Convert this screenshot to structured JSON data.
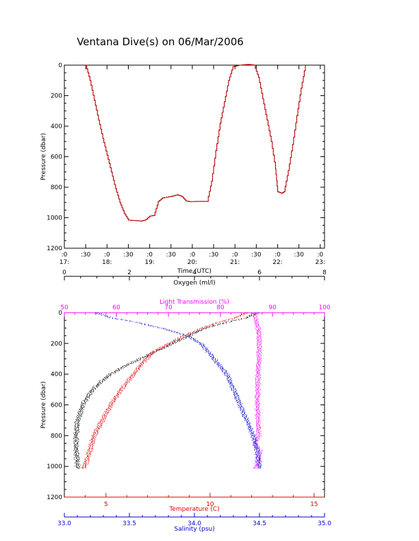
{
  "title": "Ventana Dive(s) on 06/Mar/2006",
  "colors": {
    "axis": "#000000",
    "dive_line": "#cc0000",
    "oxygen": "#000000",
    "light": "#ff00ff",
    "temperature": "#dd0000",
    "salinity": "#0000cc"
  },
  "chart_data": [
    {
      "type": "line",
      "name": "dive-track",
      "xlabel": "Time (UTC)",
      "ylabel": "Pressure (dbar)",
      "xlim": [
        17.0,
        23.1
      ],
      "ylim": [
        1200,
        0
      ],
      "y_ticks": [
        0,
        200,
        400,
        600,
        800,
        1000,
        1200
      ],
      "x_tick_labels": [
        {
          "t": 17.0,
          "top": ":0",
          "bottom": "17:"
        },
        {
          "t": 17.5,
          "top": ":30",
          "bottom": ""
        },
        {
          "t": 18.0,
          "top": ":0",
          "bottom": "18:"
        },
        {
          "t": 18.5,
          "top": ":30",
          "bottom": ""
        },
        {
          "t": 19.0,
          "top": ":0",
          "bottom": "19:"
        },
        {
          "t": 19.5,
          "top": ":30",
          "bottom": ""
        },
        {
          "t": 20.0,
          "top": ":0",
          "bottom": "20:"
        },
        {
          "t": 20.5,
          "top": ":30",
          "bottom": ""
        },
        {
          "t": 21.0,
          "top": ":0",
          "bottom": "21:"
        },
        {
          "t": 21.5,
          "top": ":30",
          "bottom": ""
        },
        {
          "t": 22.0,
          "top": ":0",
          "bottom": "22:"
        },
        {
          "t": 22.5,
          "top": ":30",
          "bottom": ""
        },
        {
          "t": 23.0,
          "top": ":0",
          "bottom": "23:"
        }
      ],
      "points": [
        [
          17.5,
          0
        ],
        [
          17.6,
          100
        ],
        [
          17.7,
          230
        ],
        [
          17.8,
          360
        ],
        [
          17.9,
          480
        ],
        [
          18.0,
          590
        ],
        [
          18.1,
          700
        ],
        [
          18.2,
          810
        ],
        [
          18.3,
          900
        ],
        [
          18.4,
          970
        ],
        [
          18.5,
          1015
        ],
        [
          18.6,
          1018
        ],
        [
          18.8,
          1022
        ],
        [
          18.9,
          1015
        ],
        [
          19.0,
          990
        ],
        [
          19.1,
          985
        ],
        [
          19.2,
          895
        ],
        [
          19.3,
          870
        ],
        [
          19.5,
          860
        ],
        [
          19.65,
          850
        ],
        [
          19.75,
          860
        ],
        [
          19.85,
          890
        ],
        [
          19.95,
          895
        ],
        [
          20.1,
          893
        ],
        [
          20.35,
          893
        ],
        [
          20.45,
          760
        ],
        [
          20.55,
          560
        ],
        [
          20.65,
          380
        ],
        [
          20.75,
          240
        ],
        [
          20.85,
          100
        ],
        [
          20.95,
          10
        ],
        [
          21.1,
          0
        ],
        [
          21.3,
          -5
        ],
        [
          21.45,
          0
        ],
        [
          21.55,
          80
        ],
        [
          21.65,
          220
        ],
        [
          21.75,
          360
        ],
        [
          21.85,
          500
        ],
        [
          21.95,
          680
        ],
        [
          22.0,
          830
        ],
        [
          22.1,
          840
        ],
        [
          22.15,
          830
        ],
        [
          22.25,
          690
        ],
        [
          22.35,
          520
        ],
        [
          22.45,
          330
        ],
        [
          22.55,
          150
        ],
        [
          22.65,
          0
        ]
      ]
    },
    {
      "type": "scatter",
      "name": "profiles",
      "ylabel": "Pressure (dbar)",
      "ylim": [
        1200,
        0
      ],
      "y_ticks": [
        0,
        200,
        400,
        600,
        800,
        1000,
        1200
      ],
      "axes": {
        "oxygen": {
          "label": "Oxygen (ml/l)",
          "lim": [
            0,
            8
          ],
          "ticks": [
            0,
            2,
            4,
            6,
            8
          ]
        },
        "light": {
          "label": "Light Transmission (%)",
          "lim": [
            50,
            100
          ],
          "ticks": [
            50,
            60,
            70,
            80,
            90,
            100
          ]
        },
        "temperature": {
          "label": "Temperature (C)",
          "lim": [
            3,
            15.5
          ],
          "ticks": [
            5,
            10,
            15
          ]
        },
        "salinity": {
          "label": "Salinity (psu)",
          "lim": [
            33.0,
            35.0
          ],
          "ticks": [
            "33.0",
            "33.5",
            "34.0",
            "34.5",
            "35.0"
          ]
        }
      },
      "series": [
        {
          "key": "oxygen",
          "profile": [
            [
              0,
              5.9
            ],
            [
              30,
              5.6
            ],
            [
              60,
              5.0
            ],
            [
              100,
              4.3
            ],
            [
              150,
              3.8
            ],
            [
              200,
              3.3
            ],
            [
              250,
              2.8
            ],
            [
              300,
              2.3
            ],
            [
              350,
              1.8
            ],
            [
              400,
              1.4
            ],
            [
              450,
              1.1
            ],
            [
              500,
              0.85
            ],
            [
              600,
              0.55
            ],
            [
              700,
              0.4
            ],
            [
              800,
              0.35
            ],
            [
              900,
              0.35
            ],
            [
              1000,
              0.4
            ],
            [
              1010,
              0.42
            ]
          ]
        },
        {
          "key": "light",
          "profile": [
            [
              0,
              87.0
            ],
            [
              20,
              86.5
            ],
            [
              50,
              86.8
            ],
            [
              100,
              87.2
            ],
            [
              200,
              87.4
            ],
            [
              400,
              87.2
            ],
            [
              600,
              87.0
            ],
            [
              800,
              87.3
            ],
            [
              850,
              86.5
            ],
            [
              900,
              87.5
            ],
            [
              1000,
              86.8
            ],
            [
              1010,
              86.6
            ]
          ]
        },
        {
          "key": "temperature",
          "profile": [
            [
              0,
              11.7
            ],
            [
              30,
              11.2
            ],
            [
              60,
              10.4
            ],
            [
              100,
              9.6
            ],
            [
              150,
              8.7
            ],
            [
              200,
              8.0
            ],
            [
              250,
              7.3
            ],
            [
              300,
              6.9
            ],
            [
              400,
              6.3
            ],
            [
              500,
              5.7
            ],
            [
              600,
              5.2
            ],
            [
              700,
              4.8
            ],
            [
              800,
              4.4
            ],
            [
              900,
              4.2
            ],
            [
              1000,
              3.95
            ],
            [
              1010,
              3.9
            ]
          ]
        },
        {
          "key": "salinity",
          "profile": [
            [
              0,
              33.25
            ],
            [
              30,
              33.35
            ],
            [
              60,
              33.55
            ],
            [
              100,
              33.75
            ],
            [
              150,
              33.95
            ],
            [
              200,
              34.05
            ],
            [
              300,
              34.15
            ],
            [
              400,
              34.25
            ],
            [
              500,
              34.3
            ],
            [
              600,
              34.35
            ],
            [
              700,
              34.4
            ],
            [
              800,
              34.45
            ],
            [
              900,
              34.48
            ],
            [
              1000,
              34.5
            ],
            [
              1010,
              34.5
            ]
          ]
        }
      ]
    }
  ]
}
